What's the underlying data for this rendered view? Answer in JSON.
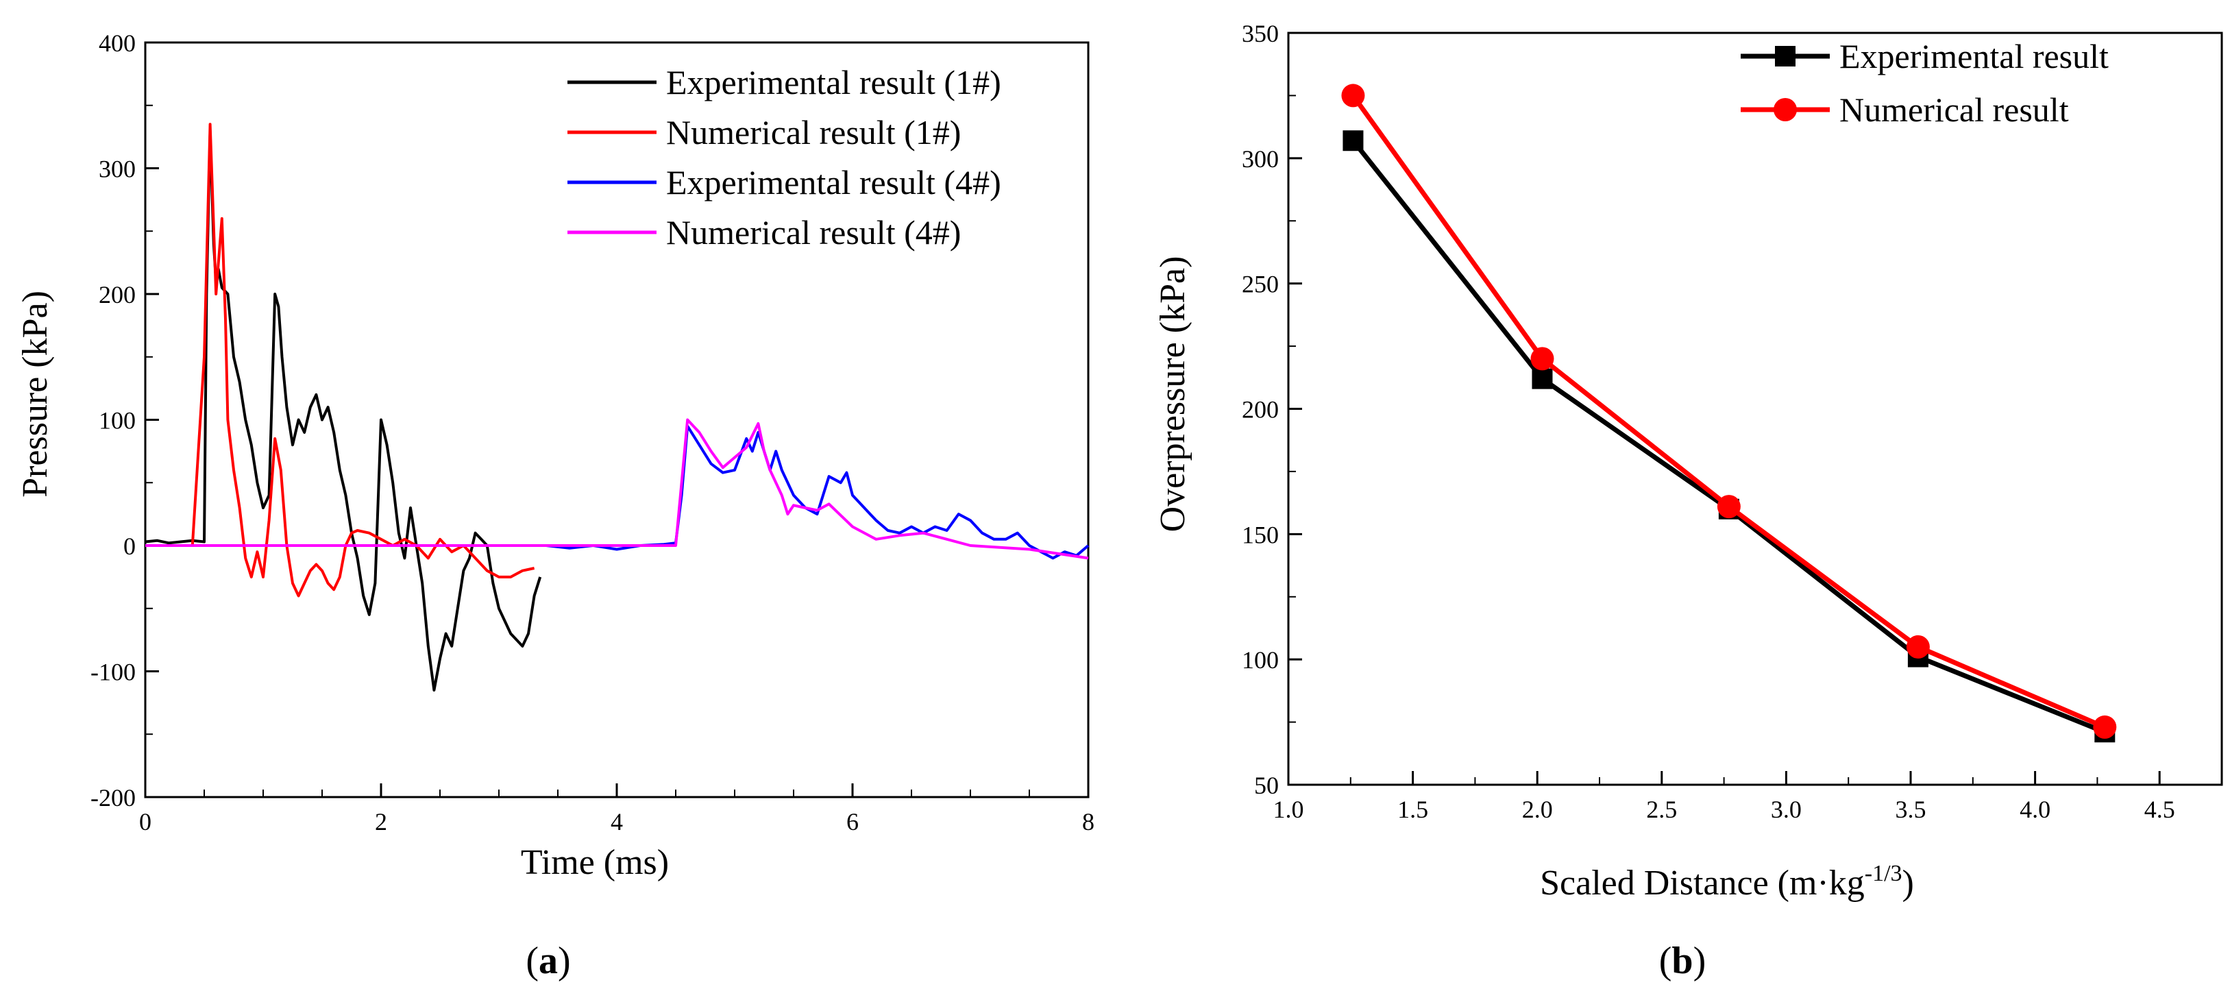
{
  "colors": {
    "black": "#000000",
    "red": "#ff0000",
    "blue": "#0000ff",
    "magenta": "#ff00ff"
  },
  "panels": {
    "a_label": "a",
    "b_label": "b"
  },
  "chart_data": [
    {
      "type": "line",
      "panel": "a",
      "xlabel": "Time (ms)",
      "ylabel": "Pressure (kPa)",
      "xlim": [
        0,
        8
      ],
      "ylim": [
        -200,
        400
      ],
      "xticks": [
        "0",
        "2",
        "4",
        "6",
        "8"
      ],
      "yticks": [
        "-200",
        "-100",
        "0",
        "100",
        "200",
        "300",
        "400"
      ],
      "grid": false,
      "legend": "top-right",
      "series": [
        {
          "name": "Experimental result (1#)",
          "color": "#000000",
          "x": [
            0,
            0.1,
            0.2,
            0.3,
            0.4,
            0.5,
            0.52,
            0.55,
            0.58,
            0.6,
            0.62,
            0.65,
            0.7,
            0.75,
            0.8,
            0.85,
            0.9,
            0.95,
            1.0,
            1.05,
            1.1,
            1.13,
            1.16,
            1.2,
            1.25,
            1.3,
            1.35,
            1.4,
            1.45,
            1.5,
            1.55,
            1.6,
            1.65,
            1.7,
            1.75,
            1.8,
            1.85,
            1.9,
            1.95,
            2.0,
            2.05,
            2.1,
            2.15,
            2.2,
            2.25,
            2.3,
            2.35,
            2.4,
            2.45,
            2.5,
            2.55,
            2.6,
            2.65,
            2.7,
            2.75,
            2.8,
            2.85,
            2.9,
            2.95,
            3.0,
            3.05,
            3.1,
            3.15,
            3.2,
            3.25,
            3.3,
            3.35
          ],
          "y": [
            3,
            4,
            2,
            3,
            4,
            3,
            200,
            330,
            240,
            210,
            220,
            205,
            200,
            150,
            130,
            100,
            80,
            50,
            30,
            40,
            200,
            190,
            150,
            110,
            80,
            100,
            90,
            110,
            120,
            100,
            110,
            90,
            60,
            40,
            10,
            -10,
            -40,
            -55,
            -30,
            100,
            80,
            50,
            10,
            -10,
            30,
            0,
            -30,
            -80,
            -115,
            -90,
            -70,
            -80,
            -50,
            -20,
            -10,
            10,
            5,
            0,
            -30,
            -50,
            -60,
            -70,
            -75,
            -80,
            -70,
            -40,
            -25
          ]
        },
        {
          "name": "Numerical result (1#)",
          "color": "#ff0000",
          "x": [
            0,
            0.4,
            0.5,
            0.55,
            0.6,
            0.65,
            0.68,
            0.7,
            0.75,
            0.8,
            0.85,
            0.9,
            0.95,
            1.0,
            1.05,
            1.1,
            1.15,
            1.2,
            1.25,
            1.3,
            1.35,
            1.4,
            1.45,
            1.5,
            1.55,
            1.6,
            1.65,
            1.7,
            1.75,
            1.8,
            1.9,
            2.0,
            2.1,
            2.2,
            2.3,
            2.4,
            2.5,
            2.6,
            2.7,
            2.8,
            2.9,
            3.0,
            3.1,
            3.2,
            3.3
          ],
          "y": [
            0,
            0,
            150,
            335,
            200,
            260,
            180,
            100,
            60,
            30,
            -10,
            -25,
            -5,
            -25,
            20,
            85,
            60,
            0,
            -30,
            -40,
            -30,
            -20,
            -15,
            -20,
            -30,
            -35,
            -25,
            0,
            10,
            12,
            10,
            5,
            0,
            5,
            0,
            -10,
            5,
            -5,
            0,
            -10,
            -20,
            -25,
            -25,
            -20,
            -18
          ]
        },
        {
          "name": "Experimental result (4#)",
          "color": "#0000ff",
          "x": [
            3.4,
            3.6,
            3.8,
            4.0,
            4.2,
            4.4,
            4.5,
            4.55,
            4.6,
            4.7,
            4.8,
            4.9,
            5.0,
            5.1,
            5.15,
            5.2,
            5.3,
            5.35,
            5.4,
            5.5,
            5.6,
            5.7,
            5.8,
            5.9,
            5.95,
            6.0,
            6.1,
            6.2,
            6.3,
            6.4,
            6.5,
            6.6,
            6.7,
            6.8,
            6.9,
            7.0,
            7.1,
            7.2,
            7.3,
            7.4,
            7.5,
            7.6,
            7.7,
            7.8,
            7.9,
            8.0
          ],
          "y": [
            0,
            -2,
            0,
            -3,
            0,
            1,
            2,
            40,
            95,
            80,
            65,
            58,
            60,
            85,
            75,
            90,
            60,
            75,
            60,
            40,
            30,
            25,
            55,
            50,
            58,
            40,
            30,
            20,
            12,
            10,
            15,
            10,
            15,
            12,
            25,
            20,
            10,
            5,
            5,
            10,
            0,
            -5,
            -10,
            -5,
            -8,
            0
          ]
        },
        {
          "name": "Numerical result (4#)",
          "color": "#ff00ff",
          "x": [
            0,
            1,
            2,
            3,
            4,
            4.5,
            4.55,
            4.6,
            4.7,
            4.8,
            4.9,
            5.0,
            5.1,
            5.2,
            5.25,
            5.3,
            5.4,
            5.45,
            5.5,
            5.6,
            5.7,
            5.8,
            6.0,
            6.2,
            6.4,
            6.6,
            6.8,
            7.0,
            7.5,
            8.0
          ],
          "y": [
            0,
            0,
            0,
            0,
            0,
            0,
            50,
            100,
            90,
            75,
            62,
            70,
            78,
            97,
            75,
            60,
            40,
            25,
            32,
            30,
            28,
            33,
            15,
            5,
            8,
            10,
            5,
            0,
            -3,
            -10
          ]
        }
      ]
    },
    {
      "type": "line",
      "panel": "b",
      "xlabel": "Scaled Distance (m·kg",
      "xlabel_sup": "-1/3",
      "xlabel_end": ")",
      "ylabel": "Overpressure (kPa)",
      "xlim": [
        1.0,
        4.75
      ],
      "ylim": [
        50,
        350
      ],
      "xticks": [
        "1.0",
        "1.5",
        "2.0",
        "2.5",
        "3.0",
        "3.5",
        "4.0",
        "4.5"
      ],
      "yticks": [
        "50",
        "100",
        "150",
        "200",
        "250",
        "300",
        "350"
      ],
      "grid": false,
      "legend": "top-right",
      "series": [
        {
          "name": "Experimental result",
          "color": "#000000",
          "marker": "square",
          "x": [
            1.26,
            2.02,
            2.77,
            3.53,
            4.28
          ],
          "y": [
            307,
            212,
            160,
            101,
            71
          ]
        },
        {
          "name": "Numerical result",
          "color": "#ff0000",
          "marker": "circle",
          "x": [
            1.26,
            2.02,
            2.77,
            3.53,
            4.28
          ],
          "y": [
            325,
            220,
            161,
            105,
            73
          ]
        }
      ]
    }
  ]
}
